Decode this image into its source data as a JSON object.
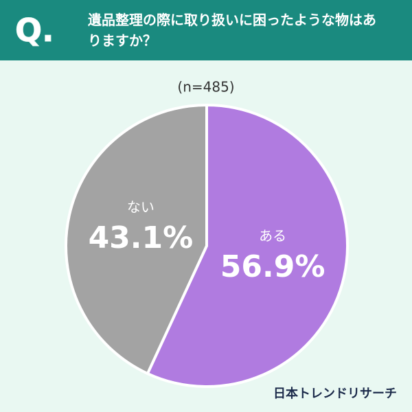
{
  "chart_data": {
    "type": "pie",
    "q_label": "Q.",
    "title": "遺品整理の際に取り扱いに困ったような物はありますか？",
    "subtitle": "(n=485)",
    "categories": [
      "ある",
      "ない"
    ],
    "values": [
      56.9,
      43.1
    ],
    "value_labels": [
      "56.9%",
      "43.1%"
    ],
    "colors": [
      "#b07be0",
      "#a3a3a3"
    ],
    "source": "日本トレンドリサーチ"
  }
}
